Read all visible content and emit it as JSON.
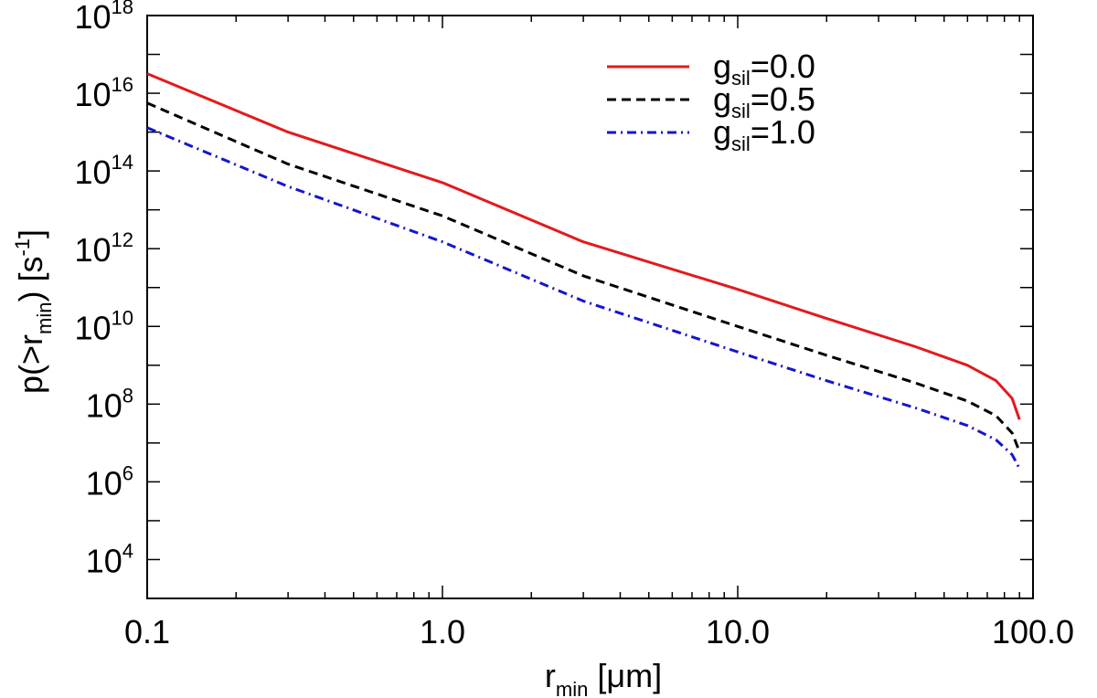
{
  "chart_data": {
    "type": "line",
    "x_scale": "log",
    "y_scale": "log",
    "xlim": [
      0.1,
      100.0
    ],
    "ylim": [
      1000.0,
      1e+18
    ],
    "x_ticks": [
      {
        "value": 0.1,
        "label": "0.1"
      },
      {
        "value": 1.0,
        "label": "1.0"
      },
      {
        "value": 10.0,
        "label": "10.0"
      },
      {
        "value": 100.0,
        "label": "100.0"
      }
    ],
    "y_ticks": [
      {
        "value": 10000.0,
        "base": "10",
        "exp": "4"
      },
      {
        "value": 1000000.0,
        "base": "10",
        "exp": "6"
      },
      {
        "value": 100000000.0,
        "base": "10",
        "exp": "8"
      },
      {
        "value": 10000000000.0,
        "base": "10",
        "exp": "10"
      },
      {
        "value": 1000000000000.0,
        "base": "10",
        "exp": "12"
      },
      {
        "value": 100000000000000.0,
        "base": "10",
        "exp": "14"
      },
      {
        "value": 1e+16,
        "base": "10",
        "exp": "16"
      },
      {
        "value": 1e+18,
        "base": "10",
        "exp": "18"
      }
    ],
    "xlabel": {
      "main": "r",
      "sub": "min",
      "rest": " [μm]"
    },
    "ylabel": {
      "pre": "p(>r",
      "sub": "min",
      "mid": ") [s",
      "sup": "-1",
      "post": "]"
    },
    "legend_position": "top-right",
    "series": [
      {
        "name": "gsil=0.0",
        "label_main": "g",
        "label_sub": "sil",
        "label_rest": "=0.0",
        "color": "#e31a1c",
        "dash": "solid",
        "x": [
          0.1,
          0.3,
          1.0,
          3.0,
          10.0,
          20.0,
          40.0,
          60.0,
          75.0,
          85.0,
          90.0
        ],
        "y": [
          3.2e+16,
          1000000000000000.0,
          50000000000000.0,
          1500000000000.0,
          90000000000.0,
          16000000000.0,
          3000000000.0,
          1000000000.0,
          400000000.0,
          140000000.0,
          40000000.0
        ]
      },
      {
        "name": "gsil=0.5",
        "label_main": "g",
        "label_sub": "sil",
        "label_rest": "=0.5",
        "color": "#000000",
        "dash": "dashed",
        "x": [
          0.1,
          0.3,
          1.0,
          3.0,
          10.0,
          20.0,
          40.0,
          60.0,
          75.0,
          85.0,
          90.0
        ],
        "y": [
          5600000000000000.0,
          150000000000000.0,
          7000000000000.0,
          200000000000.0,
          10000000000.0,
          1800000000.0,
          350000000.0,
          120000000.0,
          50000000.0,
          18000000.0,
          6000000.0
        ]
      },
      {
        "name": "gsil=1.0",
        "label_main": "g",
        "label_sub": "sil",
        "label_rest": "=1.0",
        "color": "#1515d0",
        "dash": "dashdot",
        "x": [
          0.1,
          0.3,
          1.0,
          3.0,
          10.0,
          20.0,
          40.0,
          60.0,
          75.0,
          85.0,
          90.0
        ],
        "y": [
          1300000000000000.0,
          40000000000000.0,
          1500000000000.0,
          45000000000.0,
          2200000000.0,
          400000000.0,
          80000000.0,
          28000000.0,
          12000000.0,
          5000000.0,
          2200000.0
        ]
      }
    ]
  }
}
